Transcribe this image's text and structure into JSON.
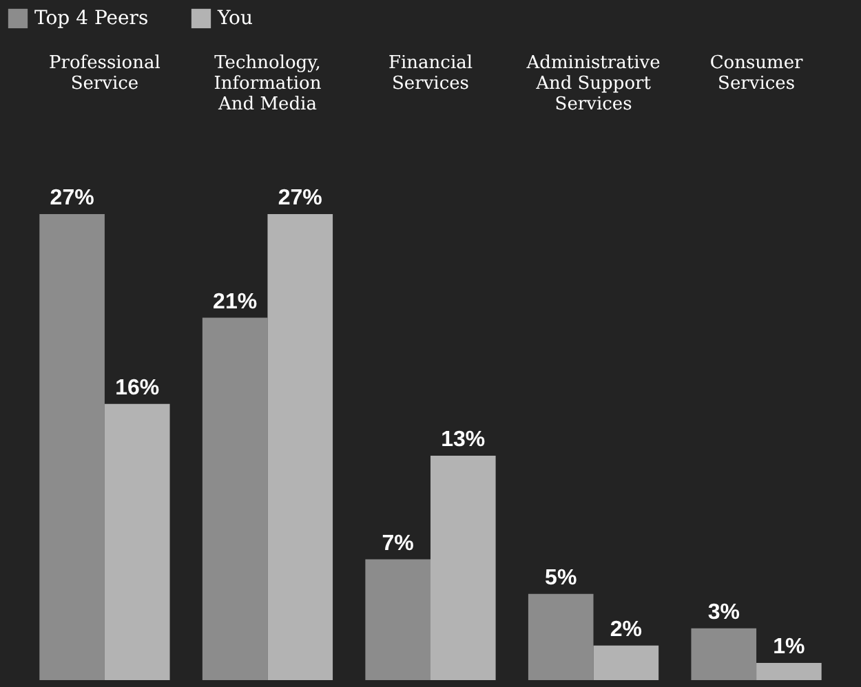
{
  "chart_data": {
    "type": "bar",
    "categories": [
      "Professional Service",
      "Technology, Information And Media",
      "Financial Services",
      "Administrative And Support Services",
      "Consumer Services"
    ],
    "series": [
      {
        "name": "Top 4 Peers",
        "color": "#8c8c8c",
        "values": [
          27,
          21,
          7,
          5,
          3
        ],
        "value_labels": [
          "27%",
          "21%",
          "7%",
          "5%",
          "3%"
        ]
      },
      {
        "name": "You",
        "color": "#b3b3b3",
        "values": [
          16,
          27,
          13,
          2,
          1
        ],
        "value_labels": [
          "16%",
          "27%",
          "13%",
          "2%",
          "1%"
        ]
      }
    ],
    "legend": "top",
    "grid": false
  }
}
